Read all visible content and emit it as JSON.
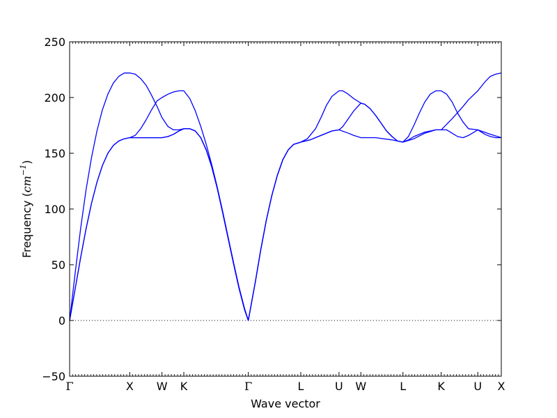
{
  "chart_data": {
    "type": "line",
    "title": "",
    "xlabel": "Wave vector",
    "ylabel": {
      "prefix": "Frequency (",
      "unit": "cm",
      "exponent": "−1",
      "suffix": ")"
    },
    "ylim": [
      -50,
      250
    ],
    "xlim": [
      0,
      7.9
    ],
    "yticks": [
      -50,
      0,
      50,
      100,
      150,
      200,
      250
    ],
    "high_symmetry_points": [
      {
        "label": "Γ",
        "x": 0.0
      },
      {
        "label": "X",
        "x": 1.1
      },
      {
        "label": "W",
        "x": 1.69
      },
      {
        "label": "K",
        "x": 2.09
      },
      {
        "label": "Γ",
        "x": 3.27
      },
      {
        "label": "L",
        "x": 4.23
      },
      {
        "label": "U",
        "x": 4.93
      },
      {
        "label": "W",
        "x": 5.33
      },
      {
        "label": "L",
        "x": 6.1
      },
      {
        "label": "K",
        "x": 6.8
      },
      {
        "label": "U",
        "x": 7.47
      },
      {
        "label": "X",
        "x": 7.9
      }
    ],
    "zero_line": true,
    "grid": false,
    "line_color": "#0000ff",
    "series": [
      {
        "values": [
          [
            0,
            0
          ],
          [
            0.1,
            28
          ],
          [
            0.2,
            56
          ],
          [
            0.3,
            82
          ],
          [
            0.4,
            105
          ],
          [
            0.5,
            124
          ],
          [
            0.6,
            139
          ],
          [
            0.7,
            150
          ],
          [
            0.8,
            157
          ],
          [
            0.9,
            161
          ],
          [
            1.0,
            163
          ],
          [
            1.1,
            164
          ],
          [
            1.3,
            164
          ],
          [
            1.5,
            164
          ],
          [
            1.69,
            164
          ],
          [
            1.8,
            165
          ],
          [
            1.9,
            167
          ],
          [
            2.0,
            170
          ],
          [
            2.09,
            172
          ],
          [
            2.2,
            172
          ],
          [
            2.3,
            170
          ],
          [
            2.4,
            164
          ],
          [
            2.5,
            153
          ],
          [
            2.6,
            138
          ],
          [
            2.7,
            119
          ],
          [
            2.8,
            97
          ],
          [
            2.9,
            74
          ],
          [
            3.0,
            51
          ],
          [
            3.1,
            29
          ],
          [
            3.2,
            10
          ],
          [
            3.27,
            0
          ],
          [
            3.4,
            35
          ],
          [
            3.5,
            64
          ],
          [
            3.6,
            90
          ],
          [
            3.7,
            112
          ],
          [
            3.8,
            130
          ],
          [
            3.9,
            144
          ],
          [
            4.0,
            153
          ],
          [
            4.1,
            158
          ],
          [
            4.23,
            160
          ],
          [
            4.4,
            162
          ],
          [
            4.6,
            166
          ],
          [
            4.8,
            170
          ],
          [
            4.93,
            171
          ],
          [
            5.1,
            168
          ],
          [
            5.2,
            166
          ],
          [
            5.33,
            164
          ],
          [
            5.6,
            164
          ],
          [
            5.9,
            162
          ],
          [
            6.1,
            160
          ],
          [
            6.3,
            163
          ],
          [
            6.5,
            168
          ],
          [
            6.7,
            171
          ],
          [
            6.8,
            171
          ],
          [
            6.9,
            171
          ],
          [
            7.0,
            168
          ],
          [
            7.1,
            165
          ],
          [
            7.2,
            164
          ],
          [
            7.3,
            166
          ],
          [
            7.47,
            171
          ],
          [
            7.7,
            167
          ],
          [
            7.9,
            164
          ]
        ]
      },
      {
        "values": [
          [
            0,
            0
          ],
          [
            0.1,
            28
          ],
          [
            0.2,
            56
          ],
          [
            0.3,
            82
          ],
          [
            0.4,
            105
          ],
          [
            0.5,
            124
          ],
          [
            0.6,
            139
          ],
          [
            0.7,
            150
          ],
          [
            0.8,
            157
          ],
          [
            0.9,
            161
          ],
          [
            1.0,
            163
          ],
          [
            1.1,
            164
          ],
          [
            1.3,
            164
          ],
          [
            1.5,
            164
          ],
          [
            1.69,
            164
          ],
          [
            1.8,
            165
          ],
          [
            1.9,
            167
          ],
          [
            2.0,
            170
          ],
          [
            2.09,
            172
          ],
          [
            2.2,
            172
          ],
          [
            2.3,
            170
          ],
          [
            2.4,
            164
          ],
          [
            2.5,
            153
          ],
          [
            2.6,
            138
          ],
          [
            2.7,
            119
          ],
          [
            2.8,
            97
          ],
          [
            2.9,
            74
          ],
          [
            3.0,
            51
          ],
          [
            3.1,
            29
          ],
          [
            3.2,
            10
          ],
          [
            3.27,
            0
          ],
          [
            3.4,
            35
          ],
          [
            3.5,
            64
          ],
          [
            3.6,
            90
          ],
          [
            3.7,
            112
          ],
          [
            3.8,
            130
          ],
          [
            3.9,
            144
          ],
          [
            4.0,
            153
          ],
          [
            4.1,
            158
          ],
          [
            4.23,
            160
          ],
          [
            4.4,
            162
          ],
          [
            4.6,
            166
          ],
          [
            4.8,
            170
          ],
          [
            4.93,
            171
          ],
          [
            5.0,
            174
          ],
          [
            5.1,
            181
          ],
          [
            5.2,
            188
          ],
          [
            5.33,
            195
          ],
          [
            5.4,
            194
          ],
          [
            5.5,
            190
          ],
          [
            5.6,
            184
          ],
          [
            5.7,
            177
          ],
          [
            5.8,
            170
          ],
          [
            5.9,
            165
          ],
          [
            6.0,
            161
          ],
          [
            6.1,
            160
          ],
          [
            6.2,
            162
          ],
          [
            6.3,
            165
          ],
          [
            6.5,
            169
          ],
          [
            6.7,
            171
          ],
          [
            6.8,
            171
          ],
          [
            7.0,
            181
          ],
          [
            7.2,
            192
          ],
          [
            7.3,
            198
          ],
          [
            7.47,
            206
          ],
          [
            7.6,
            214
          ],
          [
            7.7,
            219
          ],
          [
            7.8,
            221
          ],
          [
            7.9,
            222
          ]
        ]
      },
      {
        "values": [
          [
            0,
            0
          ],
          [
            0.1,
            42
          ],
          [
            0.2,
            82
          ],
          [
            0.3,
            117
          ],
          [
            0.4,
            146
          ],
          [
            0.5,
            170
          ],
          [
            0.6,
            189
          ],
          [
            0.7,
            203
          ],
          [
            0.8,
            213
          ],
          [
            0.9,
            219
          ],
          [
            1.0,
            222
          ],
          [
            1.1,
            222
          ],
          [
            1.2,
            221
          ],
          [
            1.3,
            217
          ],
          [
            1.4,
            211
          ],
          [
            1.5,
            202
          ],
          [
            1.6,
            192
          ],
          [
            1.69,
            182
          ],
          [
            1.8,
            174
          ],
          [
            1.9,
            171
          ],
          [
            2.0,
            171
          ],
          [
            2.09,
            172
          ],
          [
            2.2,
            172
          ],
          [
            2.3,
            170
          ],
          [
            2.4,
            164
          ],
          [
            2.5,
            153
          ],
          [
            2.6,
            138
          ],
          [
            2.7,
            119
          ],
          [
            2.8,
            97
          ],
          [
            2.9,
            74
          ],
          [
            3.0,
            51
          ],
          [
            3.1,
            29
          ],
          [
            3.2,
            10
          ],
          [
            3.27,
            0
          ],
          [
            3.4,
            35
          ],
          [
            3.5,
            64
          ],
          [
            3.6,
            90
          ],
          [
            3.7,
            112
          ],
          [
            3.8,
            130
          ],
          [
            3.9,
            144
          ],
          [
            4.0,
            153
          ],
          [
            4.1,
            158
          ],
          [
            4.23,
            160
          ],
          [
            4.35,
            163
          ],
          [
            4.5,
            172
          ],
          [
            4.6,
            182
          ],
          [
            4.7,
            193
          ],
          [
            4.8,
            201
          ],
          [
            4.93,
            206
          ],
          [
            5.0,
            206
          ],
          [
            5.1,
            203
          ],
          [
            5.2,
            199
          ],
          [
            5.33,
            195
          ],
          [
            5.4,
            194
          ],
          [
            5.5,
            190
          ],
          [
            5.6,
            184
          ],
          [
            5.7,
            177
          ],
          [
            5.8,
            170
          ],
          [
            5.9,
            165
          ],
          [
            6.0,
            161
          ],
          [
            6.1,
            160
          ],
          [
            6.2,
            165
          ],
          [
            6.3,
            175
          ],
          [
            6.4,
            186
          ],
          [
            6.5,
            196
          ],
          [
            6.6,
            203
          ],
          [
            6.7,
            206
          ],
          [
            6.8,
            206
          ],
          [
            6.9,
            203
          ],
          [
            7.0,
            196
          ],
          [
            7.1,
            186
          ],
          [
            7.2,
            178
          ],
          [
            7.3,
            172
          ],
          [
            7.47,
            171
          ],
          [
            7.6,
            167
          ],
          [
            7.7,
            165
          ],
          [
            7.8,
            164
          ],
          [
            7.9,
            164
          ]
        ]
      },
      {
        "values": [
          [
            1.1,
            164
          ],
          [
            1.2,
            166
          ],
          [
            1.3,
            172
          ],
          [
            1.4,
            180
          ],
          [
            1.5,
            189
          ],
          [
            1.6,
            197
          ],
          [
            1.69,
            200
          ],
          [
            1.8,
            203
          ],
          [
            1.9,
            205
          ],
          [
            2.0,
            206
          ],
          [
            2.09,
            206
          ],
          [
            2.2,
            199
          ],
          [
            2.3,
            188
          ],
          [
            2.4,
            174
          ],
          [
            2.5,
            158
          ],
          [
            2.6,
            140
          ],
          [
            2.7,
            120
          ],
          [
            2.8,
            98
          ],
          [
            2.9,
            75
          ],
          [
            3.0,
            52
          ],
          [
            3.1,
            30
          ],
          [
            3.2,
            11
          ],
          [
            3.27,
            0
          ]
        ]
      }
    ]
  }
}
